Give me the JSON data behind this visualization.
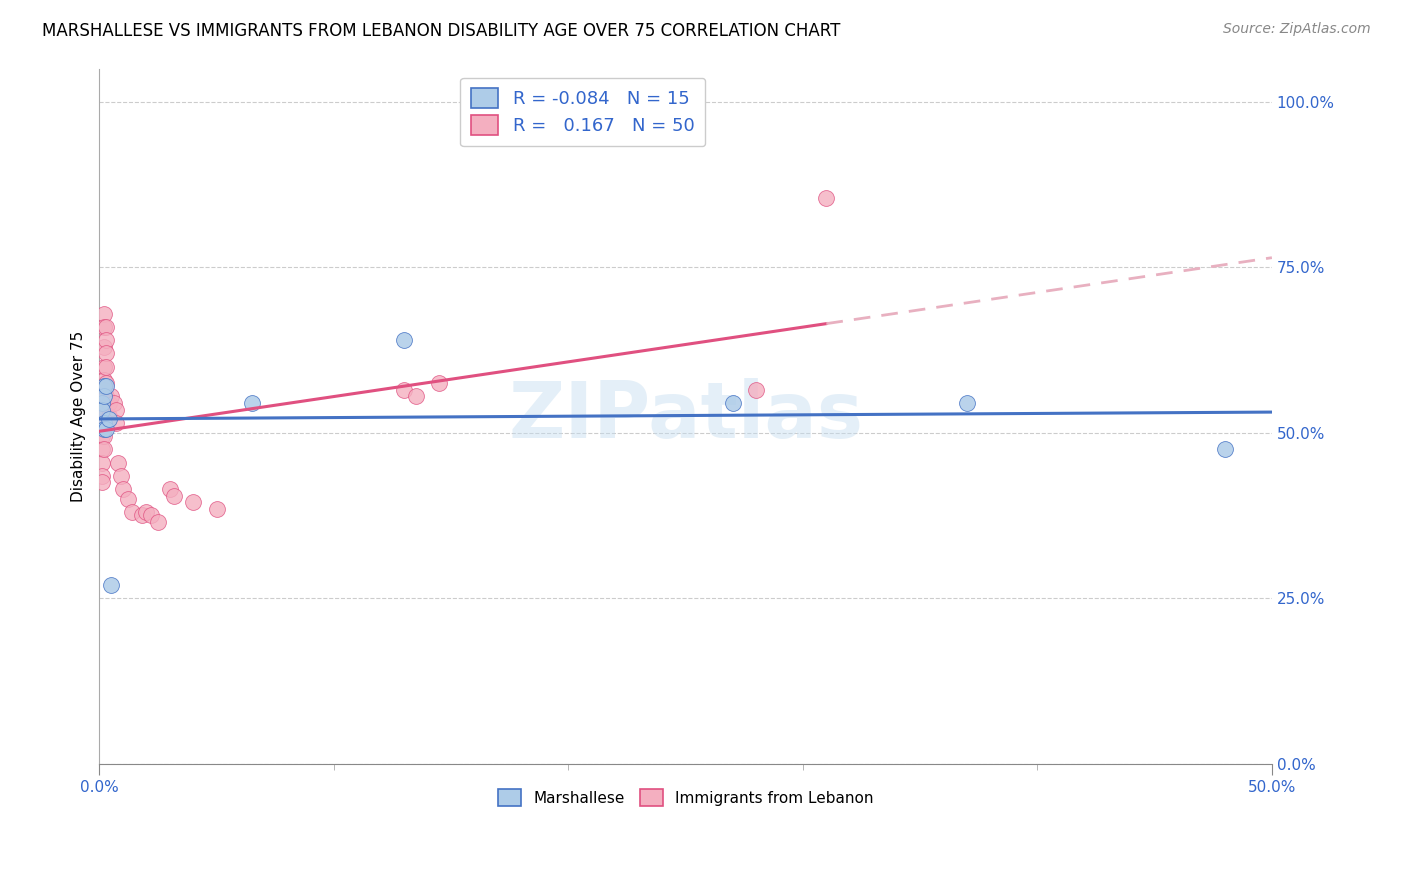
{
  "title": "MARSHALLESE VS IMMIGRANTS FROM LEBANON DISABILITY AGE OVER 75 CORRELATION CHART",
  "source": "Source: ZipAtlas.com",
  "xlim": [
    0.0,
    0.5
  ],
  "ylim": [
    0.0,
    1.05
  ],
  "watermark": "ZIPatlas",
  "legend_entries": [
    {
      "label": "Marshallese",
      "color": "#aecce8",
      "edge": "#4472c4",
      "R": "-0.084",
      "N": "15"
    },
    {
      "label": "Immigrants from Lebanon",
      "color": "#f4afc0",
      "edge": "#e05080",
      "R": " 0.167",
      "N": "50"
    }
  ],
  "marshallese_x": [
    0.001,
    0.001,
    0.002,
    0.002,
    0.002,
    0.002,
    0.003,
    0.003,
    0.004,
    0.005,
    0.065,
    0.13,
    0.27,
    0.37,
    0.48
  ],
  "marshallese_y": [
    0.545,
    0.535,
    0.57,
    0.555,
    0.515,
    0.505,
    0.57,
    0.505,
    0.52,
    0.27,
    0.545,
    0.64,
    0.545,
    0.545,
    0.475
  ],
  "lebanon_x": [
    0.001,
    0.001,
    0.001,
    0.001,
    0.001,
    0.001,
    0.001,
    0.001,
    0.001,
    0.001,
    0.002,
    0.002,
    0.002,
    0.002,
    0.002,
    0.002,
    0.002,
    0.002,
    0.002,
    0.002,
    0.003,
    0.003,
    0.003,
    0.003,
    0.003,
    0.003,
    0.004,
    0.004,
    0.005,
    0.006,
    0.007,
    0.007,
    0.008,
    0.009,
    0.01,
    0.012,
    0.014,
    0.018,
    0.02,
    0.022,
    0.025,
    0.03,
    0.032,
    0.04,
    0.05,
    0.13,
    0.135,
    0.145,
    0.28,
    0.31
  ],
  "lebanon_y": [
    0.53,
    0.52,
    0.55,
    0.53,
    0.505,
    0.495,
    0.475,
    0.455,
    0.435,
    0.425,
    0.68,
    0.66,
    0.63,
    0.6,
    0.58,
    0.565,
    0.545,
    0.515,
    0.495,
    0.475,
    0.66,
    0.64,
    0.62,
    0.6,
    0.575,
    0.555,
    0.545,
    0.525,
    0.555,
    0.545,
    0.535,
    0.515,
    0.455,
    0.435,
    0.415,
    0.4,
    0.38,
    0.375,
    0.38,
    0.375,
    0.365,
    0.415,
    0.405,
    0.395,
    0.385,
    0.565,
    0.555,
    0.575,
    0.565,
    0.855
  ],
  "blue_line_color": "#4472c4",
  "pink_line_color": "#e05080",
  "pink_dash_color": "#e8b0c0",
  "tick_fontsize": 11,
  "label_fontsize": 11,
  "title_fontsize": 12,
  "source_fontsize": 10
}
